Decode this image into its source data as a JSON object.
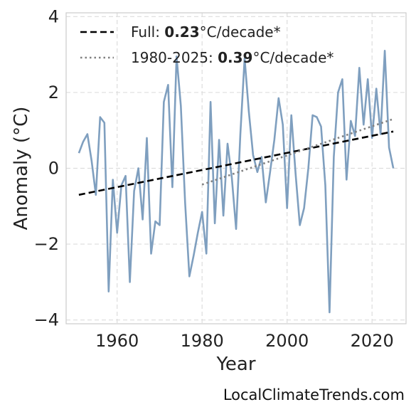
{
  "chart_data": {
    "type": "line",
    "xlabel": "Year",
    "ylabel": "Anomaly (°C)",
    "xlim": [
      1948,
      2028
    ],
    "ylim": [
      -4.1,
      4.1
    ],
    "xticks": [
      1960,
      1980,
      2000,
      2020
    ],
    "yticks": [
      -4,
      -2,
      0,
      2,
      4
    ],
    "ytick_labels": [
      "−4",
      "−2",
      "0",
      "2",
      "4"
    ],
    "grid": true,
    "legend_position": "top-left",
    "colors": {
      "series": "#7f9fbf",
      "full_trend": "#000000",
      "recent_trend": "#808080"
    },
    "series": [
      {
        "x": [
          1951,
          1952,
          1953,
          1954,
          1955,
          1956,
          1957,
          1958,
          1959,
          1960,
          1961,
          1962,
          1963,
          1964,
          1965,
          1966,
          1967,
          1968,
          1969,
          1970,
          1971,
          1972,
          1973,
          1974,
          1975,
          1976,
          1977,
          1978,
          1979,
          1980,
          1981,
          1982,
          1983,
          1984,
          1985,
          1986,
          1987,
          1988,
          1989,
          1990,
          1991,
          1992,
          1993,
          1994,
          1995,
          1996,
          1997,
          1998,
          1999,
          2000,
          2001,
          2002,
          2003,
          2004,
          2005,
          2006,
          2007,
          2008,
          2009,
          2010,
          2011,
          2012,
          2013,
          2014,
          2015,
          2016,
          2017,
          2018,
          2019,
          2020,
          2021,
          2022,
          2023,
          2024,
          2025
        ],
        "values": [
          0.4,
          0.7,
          0.9,
          0.2,
          -0.7,
          1.35,
          1.2,
          -3.25,
          -0.3,
          -1.7,
          -0.45,
          -0.2,
          -3.0,
          -0.6,
          0.0,
          -1.35,
          0.8,
          -2.25,
          -1.4,
          -1.5,
          1.75,
          2.2,
          -0.5,
          2.95,
          1.65,
          -0.9,
          -2.85,
          -2.3,
          -1.7,
          -1.15,
          -2.25,
          1.75,
          -1.45,
          0.75,
          -1.25,
          0.65,
          -0.25,
          -1.6,
          0.9,
          2.9,
          1.5,
          0.35,
          -0.1,
          0.3,
          -0.9,
          -0.1,
          0.75,
          1.85,
          1.15,
          -1.05,
          1.4,
          -0.15,
          -1.5,
          -1.05,
          0.0,
          1.4,
          1.35,
          1.1,
          -0.45,
          -3.8,
          0.3,
          2.0,
          2.35,
          -0.3,
          1.25,
          0.85,
          2.65,
          1.15,
          2.35,
          0.8,
          2.1,
          0.9,
          3.1,
          0.55,
          0.0
        ]
      }
    ],
    "trends": [
      {
        "label_prefix": "Full: ",
        "rate": "0.23",
        "label_suffix": "°C/decade*",
        "x": [
          1951,
          2025
        ],
        "y": [
          -0.7,
          0.97
        ],
        "style": "dashed"
      },
      {
        "label_prefix": "1980-2025: ",
        "rate": "0.39",
        "label_suffix": "°C/decade*",
        "x": [
          1980,
          2025
        ],
        "y": [
          -0.43,
          1.3
        ],
        "style": "dotted"
      }
    ]
  },
  "footer": "LocalClimateTrends.com"
}
